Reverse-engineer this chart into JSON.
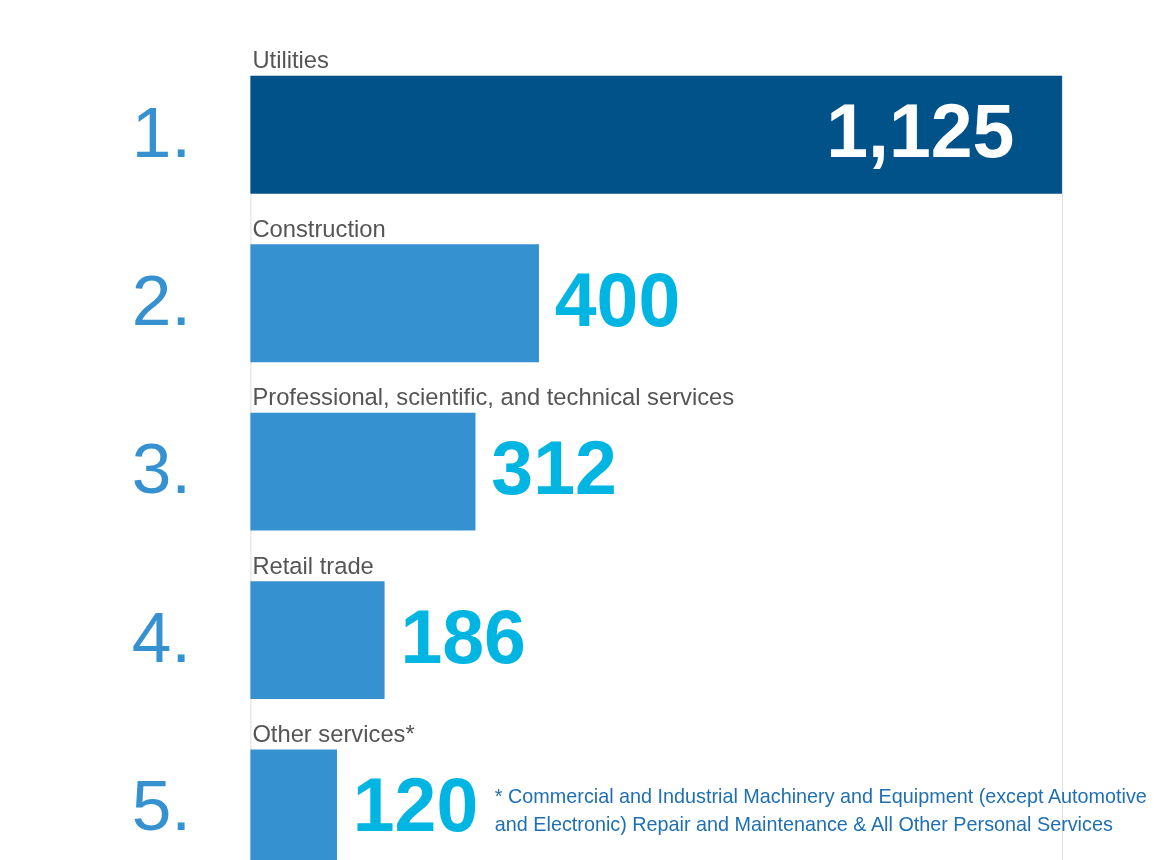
{
  "chart_data": {
    "type": "bar",
    "orientation": "horizontal",
    "data_labels": true,
    "categories": [
      "Utilities",
      "Construction",
      "Professional, scientific, and technical services",
      "Retail trade",
      "Other services*"
    ],
    "values": [
      1125,
      400,
      312,
      186,
      120
    ],
    "colors": [
      "#02528a",
      "#3591d0",
      "#3591d0",
      "#3591d0",
      "#3591d0"
    ],
    "value_labels": [
      "1,125",
      "400",
      "312",
      "186",
      "120"
    ],
    "annotations": [
      "1.",
      "2.",
      "3.",
      "4.",
      "5.",
      "* Commercial and Industrial Machinery and Equipment (except Automotive and Electronic) Repair and Maintenance & All Other Personal Services"
    ]
  }
}
